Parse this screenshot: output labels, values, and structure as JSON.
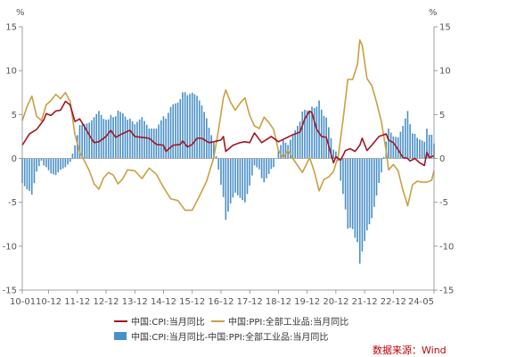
{
  "chart_data": {
    "type": "line",
    "y_unit_left": "%",
    "y_unit_right": "%",
    "ylim": [
      -15,
      15
    ],
    "yticks": [
      -15,
      -10,
      -5,
      0,
      5,
      10,
      15
    ],
    "xlim": [
      "2010-01",
      "2024-05"
    ],
    "xtick_labels": [
      "10-01",
      "10-12",
      "11-12",
      "12-12",
      "13-12",
      "14-12",
      "15-12",
      "16-12",
      "17-12",
      "18-12",
      "19-12",
      "20-12",
      "21-12",
      "22-12",
      "24-05"
    ],
    "xtick_dates": [
      "2010-01",
      "2010-12",
      "2011-12",
      "2012-12",
      "2013-12",
      "2014-12",
      "2015-12",
      "2016-12",
      "2017-12",
      "2018-12",
      "2019-12",
      "2020-12",
      "2021-12",
      "2022-12",
      "2024-05"
    ],
    "grid": false,
    "legend_position": "bottom",
    "series": [
      {
        "name": "中国:CPI:当月同比",
        "type": "line",
        "color": "#a31524",
        "points": [
          [
            "2010-01",
            1.5
          ],
          [
            "2010-04",
            2.8
          ],
          [
            "2010-07",
            3.3
          ],
          [
            "2010-10",
            4.4
          ],
          [
            "2010-11",
            5.1
          ],
          [
            "2011-01",
            4.9
          ],
          [
            "2011-03",
            5.4
          ],
          [
            "2011-05",
            5.5
          ],
          [
            "2011-07",
            6.5
          ],
          [
            "2011-09",
            6.1
          ],
          [
            "2011-11",
            4.2
          ],
          [
            "2012-01",
            4.5
          ],
          [
            "2012-03",
            3.6
          ],
          [
            "2012-06",
            2.2
          ],
          [
            "2012-07",
            1.8
          ],
          [
            "2012-09",
            1.9
          ],
          [
            "2012-12",
            2.5
          ],
          [
            "2013-02",
            3.2
          ],
          [
            "2013-04",
            2.4
          ],
          [
            "2013-06",
            2.7
          ],
          [
            "2013-09",
            3.1
          ],
          [
            "2013-10",
            3.2
          ],
          [
            "2013-12",
            2.5
          ],
          [
            "2014-03",
            2.4
          ],
          [
            "2014-06",
            2.3
          ],
          [
            "2014-09",
            1.6
          ],
          [
            "2014-12",
            1.5
          ],
          [
            "2015-01",
            0.8
          ],
          [
            "2015-04",
            1.5
          ],
          [
            "2015-07",
            1.6
          ],
          [
            "2015-08",
            2.0
          ],
          [
            "2015-10",
            1.3
          ],
          [
            "2015-12",
            1.6
          ],
          [
            "2016-02",
            2.3
          ],
          [
            "2016-04",
            2.3
          ],
          [
            "2016-07",
            1.8
          ],
          [
            "2016-09",
            1.9
          ],
          [
            "2016-12",
            2.1
          ],
          [
            "2017-01",
            2.5
          ],
          [
            "2017-02",
            0.8
          ],
          [
            "2017-05",
            1.5
          ],
          [
            "2017-08",
            1.8
          ],
          [
            "2017-10",
            1.9
          ],
          [
            "2017-12",
            1.8
          ],
          [
            "2018-02",
            2.9
          ],
          [
            "2018-05",
            1.8
          ],
          [
            "2018-09",
            2.5
          ],
          [
            "2018-12",
            1.9
          ],
          [
            "2019-03",
            2.3
          ],
          [
            "2019-06",
            2.7
          ],
          [
            "2019-09",
            3.0
          ],
          [
            "2019-11",
            4.5
          ],
          [
            "2020-01",
            5.4
          ],
          [
            "2020-02",
            5.2
          ],
          [
            "2020-04",
            3.3
          ],
          [
            "2020-06",
            2.5
          ],
          [
            "2020-08",
            2.4
          ],
          [
            "2020-10",
            0.5
          ],
          [
            "2020-11",
            -0.5
          ],
          [
            "2020-12",
            0.2
          ],
          [
            "2021-02",
            -0.2
          ],
          [
            "2021-04",
            0.9
          ],
          [
            "2021-06",
            1.1
          ],
          [
            "2021-08",
            0.8
          ],
          [
            "2021-10",
            1.5
          ],
          [
            "2021-11",
            2.3
          ],
          [
            "2022-01",
            0.9
          ],
          [
            "2022-03",
            1.5
          ],
          [
            "2022-06",
            2.5
          ],
          [
            "2022-09",
            2.8
          ],
          [
            "2022-10",
            2.1
          ],
          [
            "2022-12",
            1.8
          ],
          [
            "2023-02",
            1.0
          ],
          [
            "2023-04",
            0.1
          ],
          [
            "2023-06",
            0.0
          ],
          [
            "2023-07",
            -0.3
          ],
          [
            "2023-09",
            0.0
          ],
          [
            "2023-11",
            -0.5
          ],
          [
            "2024-01",
            -0.8
          ],
          [
            "2024-02",
            0.7
          ],
          [
            "2024-03",
            0.1
          ],
          [
            "2024-05",
            0.3
          ]
        ]
      },
      {
        "name": "中国:PPI:全部工业品:当月同比",
        "type": "line",
        "color": "#c9a043",
        "points": [
          [
            "2010-01",
            4.3
          ],
          [
            "2010-03",
            5.9
          ],
          [
            "2010-05",
            7.1
          ],
          [
            "2010-07",
            4.8
          ],
          [
            "2010-09",
            4.3
          ],
          [
            "2010-11",
            6.1
          ],
          [
            "2011-01",
            6.6
          ],
          [
            "2011-03",
            7.3
          ],
          [
            "2011-05",
            6.8
          ],
          [
            "2011-07",
            7.5
          ],
          [
            "2011-09",
            6.5
          ],
          [
            "2011-11",
            2.7
          ],
          [
            "2012-01",
            0.7
          ],
          [
            "2012-03",
            -0.3
          ],
          [
            "2012-05",
            -1.4
          ],
          [
            "2012-07",
            -2.9
          ],
          [
            "2012-09",
            -3.5
          ],
          [
            "2012-11",
            -2.2
          ],
          [
            "2013-01",
            -1.6
          ],
          [
            "2013-03",
            -1.9
          ],
          [
            "2013-05",
            -2.9
          ],
          [
            "2013-07",
            -2.3
          ],
          [
            "2013-09",
            -1.3
          ],
          [
            "2013-12",
            -1.4
          ],
          [
            "2014-03",
            -2.3
          ],
          [
            "2014-06",
            -1.1
          ],
          [
            "2014-09",
            -1.8
          ],
          [
            "2014-12",
            -3.3
          ],
          [
            "2015-03",
            -4.6
          ],
          [
            "2015-06",
            -4.8
          ],
          [
            "2015-09",
            -5.9
          ],
          [
            "2015-12",
            -5.9
          ],
          [
            "2016-03",
            -4.3
          ],
          [
            "2016-06",
            -2.6
          ],
          [
            "2016-08",
            -0.8
          ],
          [
            "2016-09",
            0.1
          ],
          [
            "2016-11",
            3.3
          ],
          [
            "2017-01",
            6.9
          ],
          [
            "2017-02",
            7.8
          ],
          [
            "2017-04",
            6.4
          ],
          [
            "2017-06",
            5.5
          ],
          [
            "2017-08",
            6.3
          ],
          [
            "2017-10",
            6.9
          ],
          [
            "2017-12",
            4.9
          ],
          [
            "2018-02",
            3.7
          ],
          [
            "2018-04",
            3.4
          ],
          [
            "2018-06",
            4.7
          ],
          [
            "2018-08",
            4.1
          ],
          [
            "2018-10",
            3.3
          ],
          [
            "2018-12",
            0.9
          ],
          [
            "2019-02",
            0.1
          ],
          [
            "2019-04",
            0.9
          ],
          [
            "2019-06",
            0.0
          ],
          [
            "2019-08",
            -0.8
          ],
          [
            "2019-10",
            -1.6
          ],
          [
            "2019-12",
            -0.5
          ],
          [
            "2020-01",
            0.1
          ],
          [
            "2020-03",
            -1.5
          ],
          [
            "2020-05",
            -3.7
          ],
          [
            "2020-07",
            -2.4
          ],
          [
            "2020-09",
            -2.1
          ],
          [
            "2020-11",
            -1.5
          ],
          [
            "2021-01",
            0.3
          ],
          [
            "2021-03",
            4.4
          ],
          [
            "2021-05",
            9.0
          ],
          [
            "2021-07",
            9.0
          ],
          [
            "2021-09",
            10.7
          ],
          [
            "2021-10",
            13.5
          ],
          [
            "2021-11",
            12.9
          ],
          [
            "2022-01",
            9.1
          ],
          [
            "2022-03",
            8.3
          ],
          [
            "2022-05",
            6.4
          ],
          [
            "2022-07",
            4.2
          ],
          [
            "2022-09",
            0.9
          ],
          [
            "2022-10",
            -1.3
          ],
          [
            "2022-12",
            -0.7
          ],
          [
            "2023-02",
            -1.4
          ],
          [
            "2023-04",
            -3.6
          ],
          [
            "2023-06",
            -5.4
          ],
          [
            "2023-08",
            -3.0
          ],
          [
            "2023-10",
            -2.6
          ],
          [
            "2023-12",
            -2.7
          ],
          [
            "2024-02",
            -2.7
          ],
          [
            "2024-04",
            -2.5
          ],
          [
            "2024-05",
            -1.4
          ]
        ]
      },
      {
        "name": "中国:CPI:当月同比-中国:PPI:全部工业品:当月同比",
        "type": "bar",
        "color": "#4a90c8",
        "derived_from": [
          "中国:CPI:当月同比",
          "中国:PPI:全部工业品:当月同比"
        ]
      }
    ]
  },
  "source": "数据来源：Wind"
}
